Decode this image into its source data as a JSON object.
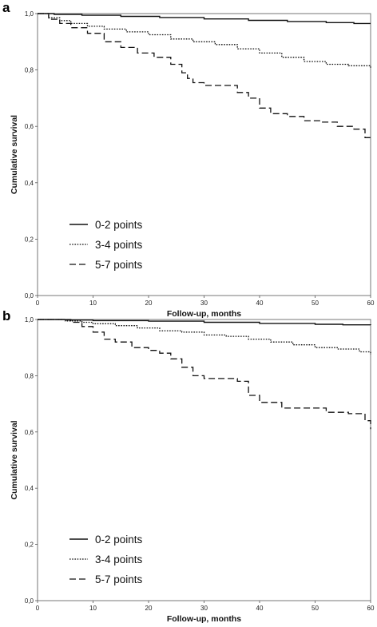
{
  "chart_data": [
    {
      "panel_label": "a",
      "type": "line",
      "xlabel": "Follow-up, months",
      "ylabel": "Cumulative survival",
      "xlim": [
        0,
        60
      ],
      "ylim": [
        0,
        1
      ],
      "xticks": [
        "0",
        "10",
        "20",
        "30",
        "40",
        "50",
        "60"
      ],
      "yticks": [
        "0,0",
        "0,2",
        "0,4",
        "0,6",
        "0,8",
        "1,0"
      ],
      "legend_position": "bottom-left",
      "series": [
        {
          "name": "0-2 points",
          "style": "solid",
          "x": [
            0,
            3,
            8,
            15,
            22,
            30,
            38,
            45,
            52,
            57,
            60
          ],
          "y": [
            1.0,
            0.997,
            0.994,
            0.99,
            0.986,
            0.981,
            0.976,
            0.972,
            0.968,
            0.965,
            0.965
          ]
        },
        {
          "name": "3-4 points",
          "style": "dotted",
          "x": [
            0,
            2,
            4,
            6,
            9,
            12,
            16,
            20,
            24,
            28,
            32,
            36,
            40,
            44,
            48,
            52,
            56,
            60
          ],
          "y": [
            1.0,
            0.985,
            0.975,
            0.965,
            0.955,
            0.945,
            0.935,
            0.925,
            0.91,
            0.9,
            0.89,
            0.875,
            0.86,
            0.845,
            0.83,
            0.82,
            0.815,
            0.805
          ]
        },
        {
          "name": "5-7 points",
          "style": "dashed",
          "x": [
            0,
            2,
            4,
            6,
            9,
            12,
            15,
            18,
            21,
            24,
            26,
            27,
            28,
            30,
            33,
            36,
            38,
            40,
            42,
            45,
            48,
            51,
            54,
            57,
            59,
            60
          ],
          "y": [
            1.0,
            0.98,
            0.965,
            0.95,
            0.93,
            0.9,
            0.88,
            0.86,
            0.845,
            0.82,
            0.79,
            0.77,
            0.755,
            0.745,
            0.745,
            0.72,
            0.7,
            0.665,
            0.645,
            0.635,
            0.62,
            0.615,
            0.6,
            0.59,
            0.56,
            0.55
          ]
        }
      ]
    },
    {
      "panel_label": "b",
      "type": "line",
      "xlabel": "Follow-up, months",
      "ylabel": "Cumulative survival",
      "xlim": [
        0,
        60
      ],
      "ylim": [
        0,
        1
      ],
      "xticks": [
        "0",
        "10",
        "20",
        "30",
        "40",
        "50",
        "60"
      ],
      "yticks": [
        "0,0",
        "0,2",
        "0,4",
        "0,6",
        "0,8",
        "1,0"
      ],
      "legend_position": "bottom-left",
      "series": [
        {
          "name": "0-2 points",
          "style": "solid",
          "x": [
            0,
            5,
            10,
            20,
            30,
            40,
            50,
            55,
            60
          ],
          "y": [
            1.0,
            0.998,
            0.996,
            0.994,
            0.99,
            0.986,
            0.983,
            0.981,
            0.98
          ]
        },
        {
          "name": "3-4 points",
          "style": "dotted",
          "x": [
            0,
            5,
            8,
            10,
            14,
            18,
            22,
            26,
            30,
            34,
            38,
            42,
            46,
            50,
            54,
            58,
            60
          ],
          "y": [
            1.0,
            0.995,
            0.99,
            0.985,
            0.978,
            0.97,
            0.96,
            0.955,
            0.945,
            0.94,
            0.93,
            0.92,
            0.91,
            0.9,
            0.895,
            0.885,
            0.875
          ]
        },
        {
          "name": "5-7 points",
          "style": "dashed",
          "x": [
            0,
            6,
            8,
            10,
            12,
            14,
            17,
            20,
            22,
            24,
            26,
            28,
            30,
            33,
            36,
            38,
            40,
            44,
            48,
            52,
            56,
            59,
            60
          ],
          "y": [
            1.0,
            0.99,
            0.975,
            0.955,
            0.93,
            0.92,
            0.9,
            0.89,
            0.88,
            0.86,
            0.83,
            0.8,
            0.79,
            0.79,
            0.78,
            0.73,
            0.705,
            0.685,
            0.685,
            0.67,
            0.665,
            0.64,
            0.61
          ]
        }
      ]
    }
  ]
}
